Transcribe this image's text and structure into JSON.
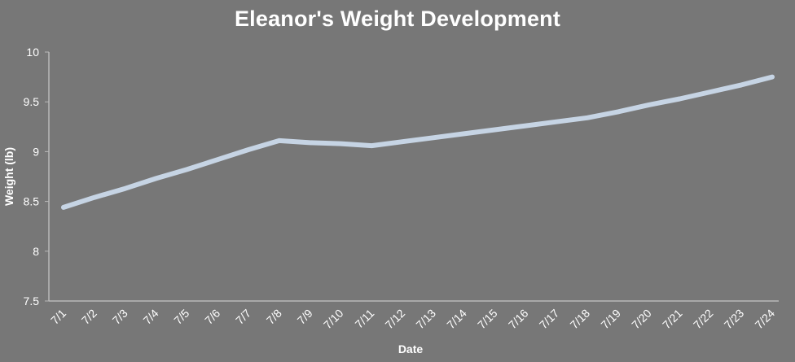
{
  "chart_data": {
    "type": "line",
    "title": "Eleanor's Weight Development",
    "xlabel": "Date",
    "ylabel": "Weight (lb)",
    "categories": [
      "7/1",
      "7/2",
      "7/3",
      "7/4",
      "7/5",
      "7/6",
      "7/7",
      "7/8",
      "7/9",
      "7/10",
      "7/11",
      "7/12",
      "7/13",
      "7/14",
      "7/15",
      "7/16",
      "7/17",
      "7/18",
      "7/19",
      "7/20",
      "7/21",
      "7/22",
      "7/23",
      "7/24"
    ],
    "series": [
      {
        "values": [
          8.44,
          8.54,
          8.63,
          8.73,
          8.82,
          8.92,
          9.02,
          9.11,
          9.09,
          9.08,
          9.06,
          9.1,
          9.14,
          9.18,
          9.22,
          9.26,
          9.3,
          9.34,
          9.4,
          9.47,
          9.53,
          9.6,
          9.67,
          9.75
        ],
        "color": "#c6d4e4"
      }
    ],
    "ylim": [
      7.5,
      10
    ],
    "yticks": [
      7.5,
      8,
      8.5,
      9,
      9.5,
      10
    ],
    "ytick_labels": [
      "7.5",
      "8",
      "8.5",
      "9",
      "9.5",
      "10"
    ],
    "grid": false,
    "legend": "none"
  },
  "colors": {
    "background": "#777777",
    "axis": "#b9b9b9",
    "line": "#c6d4e4",
    "text": "#ffffff"
  }
}
